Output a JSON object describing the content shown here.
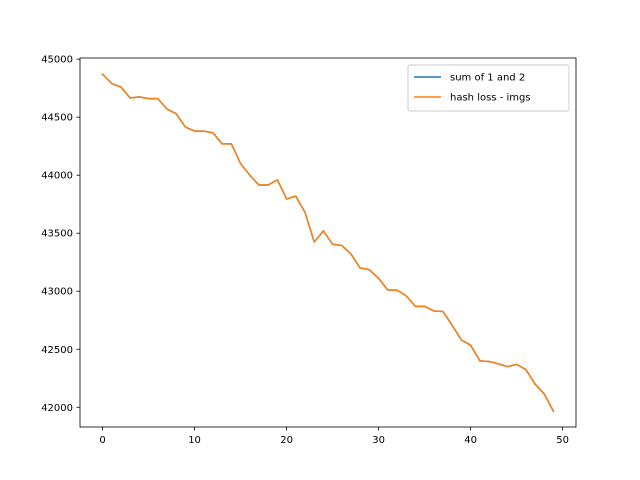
{
  "chart_data": {
    "type": "line",
    "title": "",
    "xlabel": "",
    "ylabel": "",
    "xlim": [
      -2.45,
      51.45
    ],
    "ylim": [
      41830,
      45010
    ],
    "xticks": [
      0,
      10,
      20,
      30,
      40,
      50
    ],
    "yticks": [
      42000,
      42500,
      43000,
      43500,
      44000,
      44500,
      45000
    ],
    "grid": false,
    "legend_position": "top-right",
    "x": [
      0,
      1,
      2,
      3,
      4,
      5,
      6,
      7,
      8,
      9,
      10,
      11,
      12,
      13,
      14,
      15,
      16,
      17,
      18,
      19,
      20,
      21,
      22,
      23,
      24,
      25,
      26,
      27,
      28,
      29,
      30,
      31,
      32,
      33,
      34,
      35,
      36,
      37,
      38,
      39,
      40,
      41,
      42,
      43,
      44,
      45,
      46,
      47,
      48,
      49
    ],
    "series": [
      {
        "name": "sum of 1 and 2",
        "color": "#1f77b4",
        "values": [
          44870,
          44790,
          44760,
          44665,
          44675,
          44660,
          44660,
          44570,
          44530,
          44415,
          44380,
          44380,
          44365,
          44270,
          44270,
          44100,
          44000,
          43915,
          43915,
          43960,
          43795,
          43820,
          43680,
          43425,
          43520,
          43405,
          43395,
          43320,
          43200,
          43185,
          43110,
          43010,
          43010,
          42960,
          42870,
          42870,
          42830,
          42825,
          42705,
          42580,
          42535,
          42400,
          42395,
          42375,
          42350,
          42370,
          42325,
          42200,
          42115,
          41965
        ]
      },
      {
        "name": "hash loss - imgs",
        "color": "#ff7f0e",
        "values": [
          44870,
          44790,
          44760,
          44665,
          44675,
          44660,
          44660,
          44570,
          44530,
          44415,
          44380,
          44380,
          44365,
          44270,
          44270,
          44100,
          44000,
          43915,
          43915,
          43960,
          43795,
          43820,
          43680,
          43425,
          43520,
          43405,
          43395,
          43320,
          43200,
          43185,
          43110,
          43010,
          43010,
          42960,
          42870,
          42870,
          42830,
          42825,
          42705,
          42580,
          42535,
          42400,
          42395,
          42375,
          42350,
          42370,
          42325,
          42200,
          42115,
          41965
        ]
      }
    ]
  }
}
